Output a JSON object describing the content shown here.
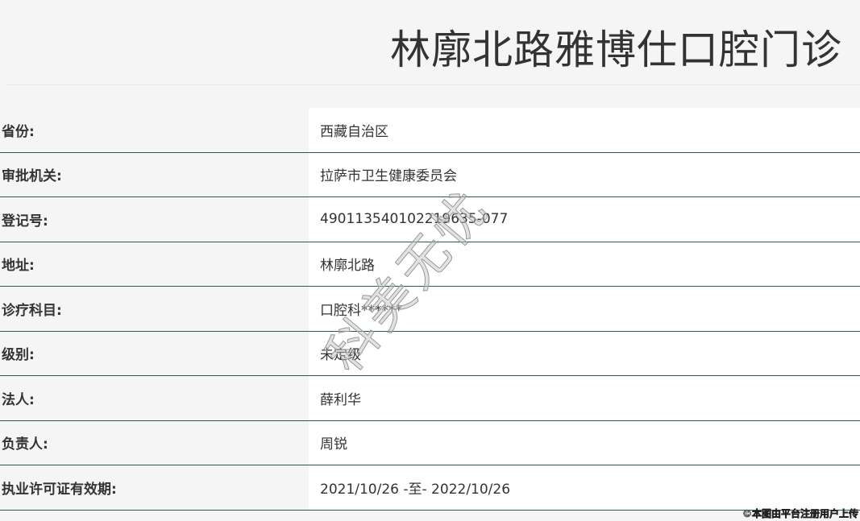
{
  "title": "林廓北路雅博仕口腔门诊",
  "rows": [
    {
      "label": "省份:",
      "value": "西藏自治区"
    },
    {
      "label": "审批机关:",
      "value": "拉萨市卫生健康委员会"
    },
    {
      "label": "登记号:",
      "value": "490113540102219635-077"
    },
    {
      "label": "地址:",
      "value": "林廓北路"
    },
    {
      "label": "诊疗科目:",
      "value": "口腔科******"
    },
    {
      "label": "级别:",
      "value": "未定级"
    },
    {
      "label": "法人:",
      "value": "薛利华"
    },
    {
      "label": "负责人:",
      "value": "周锐"
    },
    {
      "label": "执业许可证有效期:",
      "value": "2021/10/26 -至- 2022/10/26"
    }
  ],
  "watermark": "科美无忧",
  "credit": "©本图由平台注册用户上传"
}
